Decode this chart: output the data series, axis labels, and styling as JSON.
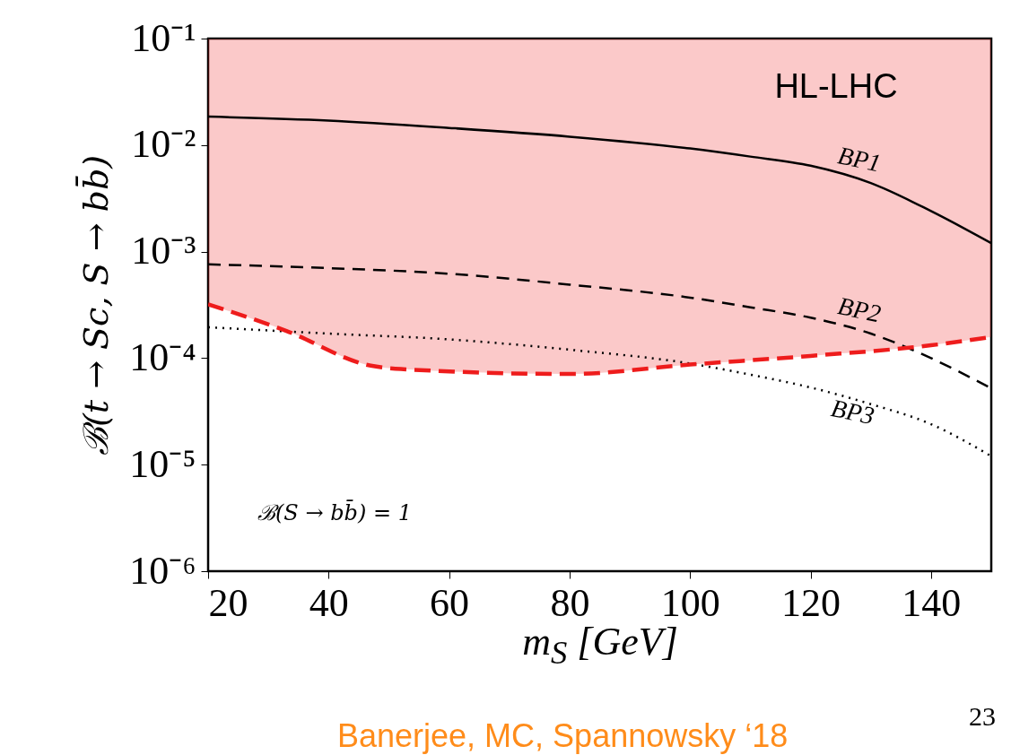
{
  "chart_data": {
    "type": "line",
    "xlabel": "m$_{S}$ [GeV]",
    "ylabel": "ℬ(t → Sc,  S → bb̄)",
    "annotations": [
      "HL-LHC",
      "ℬ(S → bb̄) = 1",
      "Banerjee, MC, Spannowsky ‘18",
      "23"
    ],
    "x": [
      20,
      40,
      60,
      80,
      100,
      110,
      120,
      130,
      140,
      150
    ],
    "series": [
      {
        "name": "BP1",
        "color": "#000000",
        "line_style": "solid",
        "values": [
          0.0185,
          0.017,
          0.0145,
          0.012,
          0.0093,
          0.0078,
          0.0064,
          0.0044,
          0.0024,
          0.0012
        ]
      },
      {
        "name": "BP2",
        "color": "#000000",
        "line_style": "dashed",
        "values": [
          0.00076,
          0.0007,
          0.00062,
          0.00049,
          0.00037,
          0.0003,
          0.00024,
          0.00017,
          0.0001,
          5.2e-05
        ]
      },
      {
        "name": "BP3",
        "color": "#000000",
        "line_style": "dotted",
        "values": [
          0.000195,
          0.00017,
          0.00015,
          0.00012,
          8.9e-05,
          7e-05,
          5.3e-05,
          3.7e-05,
          2.4e-05,
          1.2e-05
        ]
      },
      {
        "color": "#ee1c1c",
        "line_style": "dashed",
        "x": [
          20,
          33,
          47,
          52,
          80,
          100,
          120,
          140,
          150
        ],
        "values": [
          0.00032,
          0.00018,
          8.5e-05,
          7.9e-05,
          7.1e-05,
          8.7e-05,
          0.000105,
          0.000132,
          0.000158
        ],
        "lower": [
          0.00032,
          0.00018,
          8.5e-05,
          7.9e-05,
          7.1e-05,
          8.7e-05,
          0.000105,
          0.000132,
          0.000158
        ],
        "upper": [
          0.1,
          0.1,
          0.1,
          0.1,
          0.1,
          0.1,
          0.1,
          0.1,
          0.1
        ]
      }
    ],
    "xlim": [
      20,
      150
    ],
    "xticks": [
      20,
      40,
      60,
      80,
      100,
      120,
      140
    ],
    "ylim": [
      1e-06,
      0.1
    ],
    "yticks": [
      {
        "value": 0.1,
        "label": "10⁻¹"
      },
      {
        "value": 0.01,
        "label": "10⁻²"
      },
      {
        "value": 0.001,
        "label": "10⁻³"
      },
      {
        "value": 0.0001,
        "label": "10⁻⁴"
      },
      {
        "value": 1e-05,
        "label": "10⁻⁵"
      },
      {
        "value": 1e-06,
        "label": "10⁻⁶"
      }
    ],
    "log": true,
    "grid": false
  }
}
